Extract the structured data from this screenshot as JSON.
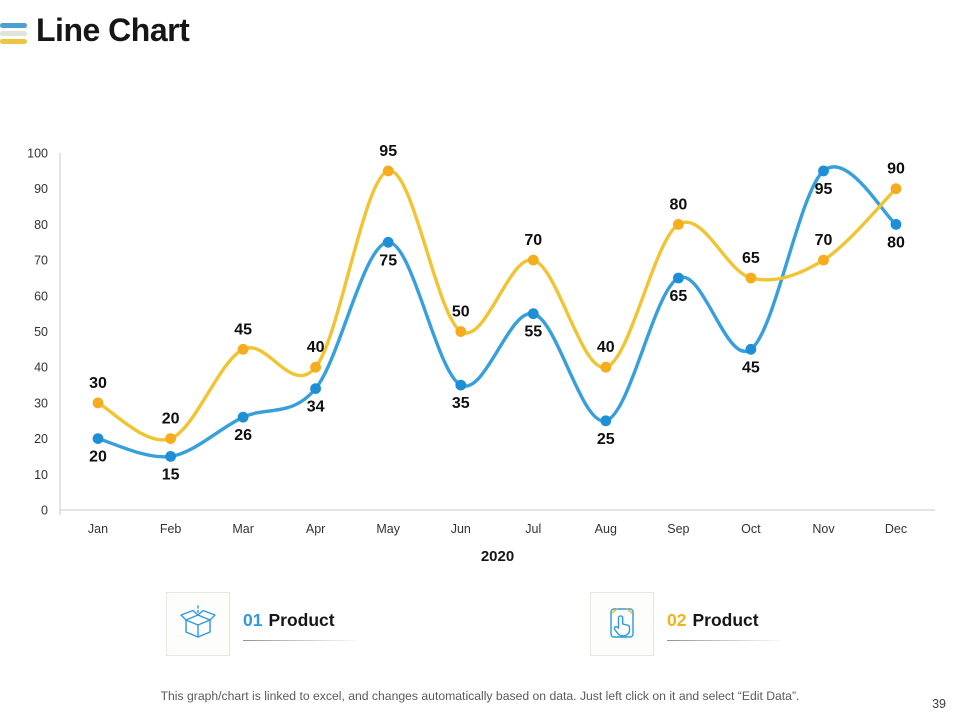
{
  "slide": {
    "title": "Line Chart",
    "footer": "This graph/chart is linked to excel, and changes automatically based on data. Just left click on it and select “Edit Data”.",
    "page_number": "39"
  },
  "title_icon": {
    "name": "three-bars-icon",
    "bar_colors": [
      "#4d9fd2",
      "#dee6da",
      "#efc53f"
    ]
  },
  "chart_data": {
    "type": "line",
    "categories": [
      "Jan",
      "Feb",
      "Mar",
      "Apr",
      "May",
      "Jun",
      "Jul",
      "Aug",
      "Sep",
      "Oct",
      "Nov",
      "Dec"
    ],
    "series": [
      {
        "name": "01 Product",
        "line_color": "#379fdb",
        "marker_color": "#1e8fd6",
        "values": [
          20,
          15,
          26,
          34,
          75,
          35,
          55,
          25,
          65,
          45,
          95,
          80
        ],
        "label_position": "below"
      },
      {
        "name": "02 Product",
        "line_color": "#f0c433",
        "marker_color": "#f5ac1e",
        "values": [
          30,
          20,
          45,
          40,
          95,
          50,
          70,
          40,
          80,
          65,
          70,
          90
        ],
        "label_position": "above"
      }
    ],
    "x_axis_title": "2020",
    "ylim": [
      0,
      100
    ],
    "y_ticks": [
      0,
      10,
      20,
      30,
      40,
      50,
      60,
      70,
      80,
      90,
      100
    ],
    "grid": false,
    "data_labels": true,
    "legend_position": "bottom",
    "smooth_lines": true
  },
  "legend": {
    "items": [
      {
        "number": "01",
        "number_color": "#2e9bd8",
        "label": "Product",
        "icon": "open-box-icon"
      },
      {
        "number": "02",
        "number_color": "#f0b31d",
        "label": "Product",
        "icon": "tap-hand-icon"
      }
    ]
  }
}
